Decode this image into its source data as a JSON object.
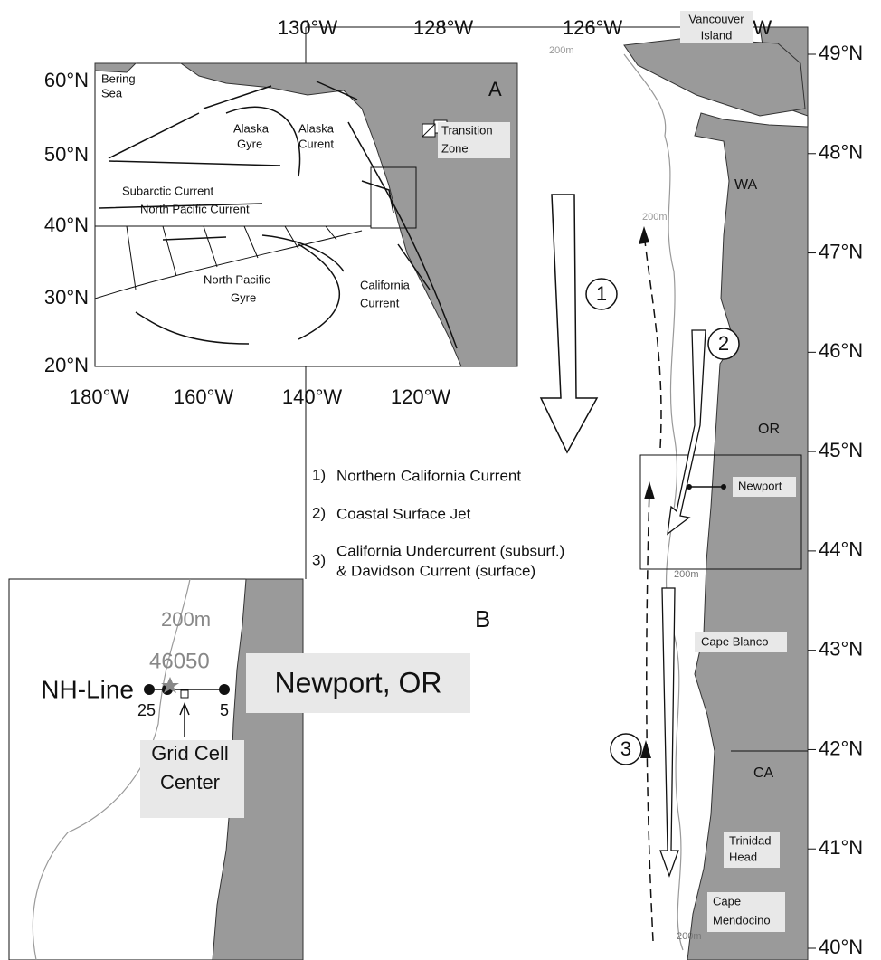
{
  "main_map": {
    "lon_labels": [
      "130°W",
      "128°W",
      "126°W",
      "124°W"
    ],
    "lat_labels": [
      "49°N",
      "48°N",
      "47°N",
      "46°N",
      "45°N",
      "44°N",
      "43°N",
      "42°N",
      "41°N",
      "40°N"
    ],
    "places": [
      "Vancouver",
      "Island",
      "WA",
      "OR",
      "CA",
      "Newport",
      "Cape Blanco",
      "Trinidad",
      "Head",
      "Cape",
      "Mendocino"
    ],
    "depth_labels": [
      "200m",
      "200m",
      "200m",
      "200m"
    ],
    "current_numbers": [
      "1",
      "2",
      "3"
    ]
  },
  "legend": [
    {
      "number": "1)",
      "text": "Northern California Current"
    },
    {
      "number": "2)",
      "text": "Coastal Surface Jet"
    },
    {
      "number": "3)",
      "text": "California Undercurrent (subsurf.)",
      "text2": "& Davidson Current (surface)"
    }
  ],
  "inset_a": {
    "letter": "A",
    "lat_labels": [
      "60°N",
      "50°N",
      "40°N",
      "30°N",
      "20°N"
    ],
    "lon_labels": [
      "180°W",
      "160°W",
      "140°W",
      "120°W"
    ],
    "labels": [
      "Bering",
      "Sea",
      "Transition",
      "Zone",
      "Alaska",
      "Gyre",
      "Alaska",
      "Curent",
      "Subarctic Current",
      "North Pacific Current",
      "North Pacific",
      "Gyre",
      "California",
      "Current"
    ]
  },
  "inset_b": {
    "letter": "B",
    "depth": "200m",
    "buoy": "46050",
    "line": "NH-Line",
    "stations": [
      "25",
      "5"
    ],
    "city": "Newport, OR",
    "cell": [
      "Grid Cell",
      "Center"
    ]
  }
}
